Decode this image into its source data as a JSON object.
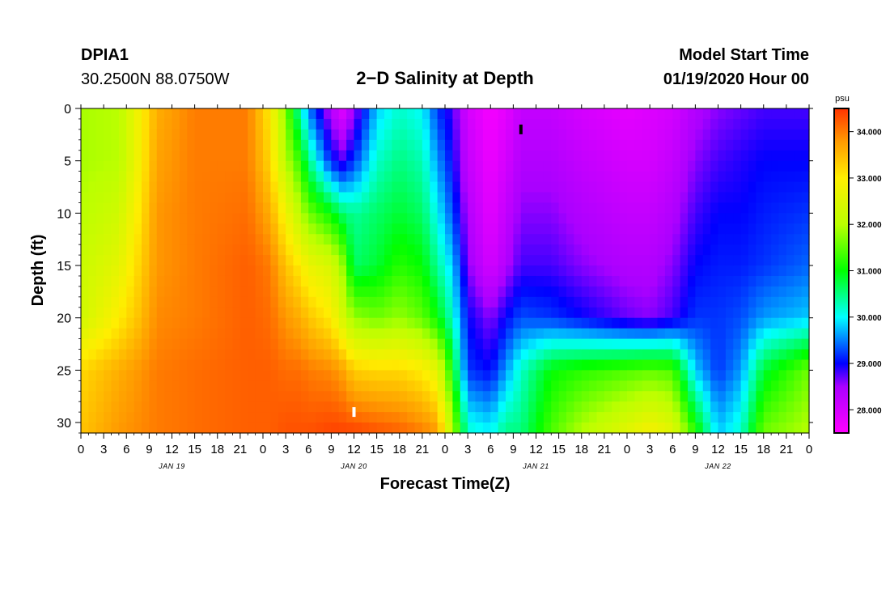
{
  "header": {
    "station": "DPIA1",
    "coords": "30.2500N 88.0750W",
    "title": "2−D Salinity at Depth",
    "model_start_label": "Model Start Time",
    "model_start_value": "01/19/2020 Hour 00"
  },
  "chart_data": {
    "type": "heatmap",
    "title": "2−D Salinity at Depth",
    "xlabel": "Forecast Time(Z)",
    "ylabel": "Depth (ft)",
    "x_hours": [
      0,
      96
    ],
    "xlim_hours": [
      0,
      96
    ],
    "ylim": [
      0,
      31
    ],
    "y_inverted": true,
    "x_tick_labels": [
      "0",
      "3",
      "6",
      "9",
      "12",
      "15",
      "18",
      "21",
      "0",
      "3",
      "6",
      "9",
      "12",
      "15",
      "18",
      "21",
      "0",
      "3",
      "6",
      "9",
      "12",
      "15",
      "18",
      "21",
      "0",
      "3",
      "6",
      "9",
      "12",
      "15",
      "18",
      "21",
      "0"
    ],
    "y_ticks": [
      0,
      5,
      10,
      15,
      20,
      25,
      30
    ],
    "day_labels": [
      "JAN 19",
      "JAN 20",
      "JAN 21",
      "JAN 22"
    ],
    "colorbar": {
      "units": "psu",
      "range": [
        27.5,
        34.5
      ],
      "ticks": [
        28.0,
        29.0,
        30.0,
        31.0,
        32.0,
        33.0,
        34.0
      ],
      "tick_labels": [
        "28.000",
        "29.000",
        "30.000",
        "31.000",
        "32.000",
        "33.000",
        "34.000"
      ]
    },
    "depth_profiles": {
      "depths_ft": [
        0,
        5,
        10,
        15,
        20,
        25,
        31
      ],
      "times_hours": [
        0,
        5,
        7.5,
        10,
        15,
        22,
        25,
        27,
        29,
        30,
        33,
        34.5,
        36,
        39,
        42,
        45,
        47,
        49,
        51,
        54,
        56,
        58,
        62,
        66,
        72,
        75,
        78,
        81,
        84,
        87,
        90,
        96
      ],
      "salinity": [
        [
          31.9,
          31.9,
          32.0,
          32.2,
          32.3,
          33.2,
          33.4
        ],
        [
          32.0,
          32.0,
          32.3,
          32.6,
          33.0,
          33.6,
          33.8
        ],
        [
          32.8,
          32.8,
          33.0,
          33.2,
          33.4,
          33.8,
          33.9
        ],
        [
          33.6,
          33.7,
          33.8,
          33.8,
          33.9,
          34.0,
          34.0
        ],
        [
          34.0,
          34.0,
          34.0,
          34.0,
          34.0,
          34.1,
          34.1
        ],
        [
          34.0,
          34.0,
          34.1,
          34.2,
          34.2,
          34.2,
          34.2
        ],
        [
          33.0,
          33.2,
          33.6,
          34.0,
          34.1,
          34.2,
          34.2
        ],
        [
          31.6,
          32.0,
          32.8,
          33.4,
          33.8,
          34.1,
          34.3
        ],
        [
          30.2,
          31.2,
          32.0,
          33.0,
          33.6,
          34.1,
          34.3
        ],
        [
          29.5,
          30.5,
          31.6,
          32.7,
          33.4,
          34.0,
          34.3
        ],
        [
          28.3,
          29.1,
          31.0,
          32.4,
          33.0,
          33.9,
          34.4
        ],
        [
          27.9,
          28.8,
          30.6,
          31.8,
          32.4,
          33.7,
          34.4
        ],
        [
          28.5,
          29.2,
          30.4,
          30.6,
          31.8,
          33.3,
          34.4
        ],
        [
          29.8,
          30.2,
          30.6,
          30.8,
          31.6,
          33.2,
          34.3
        ],
        [
          30.2,
          30.5,
          30.8,
          31.2,
          31.8,
          33.2,
          34.2
        ],
        [
          30.0,
          30.3,
          30.6,
          31.0,
          31.5,
          33.0,
          34.0
        ],
        [
          29.2,
          29.6,
          30.0,
          30.4,
          31.0,
          32.6,
          33.8
        ],
        [
          28.8,
          29.0,
          29.3,
          29.8,
          30.2,
          31.0,
          32.0
        ],
        [
          28.0,
          28.2,
          28.4,
          28.6,
          29.0,
          29.2,
          30.2
        ],
        [
          27.6,
          27.7,
          27.8,
          28.0,
          28.6,
          29.0,
          30.0
        ],
        [
          27.8,
          28.0,
          28.2,
          28.4,
          29.0,
          29.6,
          30.5
        ],
        [
          28.2,
          28.4,
          28.6,
          28.8,
          29.3,
          30.2,
          30.5
        ],
        [
          28.2,
          28.4,
          28.6,
          28.8,
          29.2,
          31.0,
          31.4
        ],
        [
          28.0,
          28.2,
          28.4,
          28.6,
          29.0,
          31.2,
          32.0
        ],
        [
          27.8,
          28.0,
          28.2,
          28.4,
          28.7,
          31.4,
          32.6
        ],
        [
          27.9,
          28.0,
          28.2,
          28.4,
          28.6,
          31.5,
          32.9
        ],
        [
          28.0,
          28.2,
          28.4,
          28.6,
          28.8,
          31.4,
          32.6
        ],
        [
          28.4,
          28.6,
          28.8,
          29.0,
          29.2,
          29.8,
          31.2
        ],
        [
          28.6,
          28.8,
          29.0,
          29.1,
          29.2,
          29.2,
          29.8
        ],
        [
          28.7,
          28.9,
          29.0,
          29.1,
          29.3,
          29.6,
          30.2
        ],
        [
          28.8,
          29.0,
          29.1,
          29.2,
          29.6,
          30.8,
          31.6
        ],
        [
          28.8,
          29.0,
          29.2,
          29.4,
          29.8,
          31.6,
          32.0
        ]
      ]
    },
    "markers": [
      {
        "time_hours": 58,
        "depth_ft": 2,
        "color": "#000000"
      },
      {
        "time_hours": 36,
        "depth_ft": 29,
        "color": "#ffffff"
      }
    ]
  }
}
